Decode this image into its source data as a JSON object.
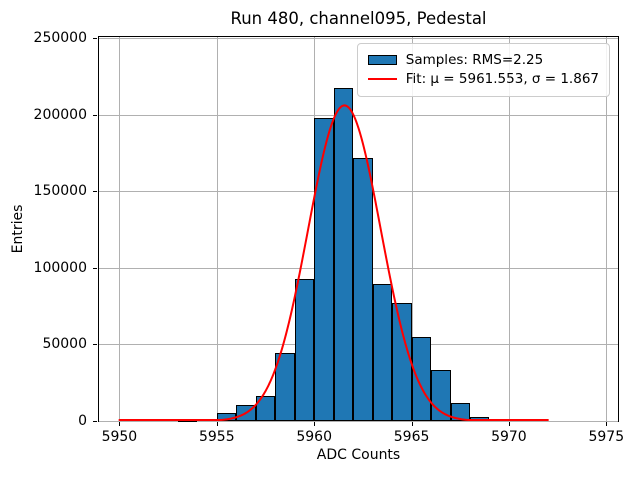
{
  "chart_data": {
    "type": "bar",
    "subtype": "histogram-with-gaussian-fit",
    "title": "Run 480, channel095, Pedestal",
    "xlabel": "ADC Counts",
    "ylabel": "Entries",
    "xlim": [
      5948.95,
      5975.6
    ],
    "ylim": [
      0,
      250650
    ],
    "xticks": [
      5950,
      5955,
      5960,
      5965,
      5970,
      5975
    ],
    "yticks": [
      0,
      50000,
      100000,
      150000,
      200000,
      250000
    ],
    "grid": true,
    "legend_position": "upper right",
    "stats": {
      "rms": 2.25,
      "mu": 5961.553,
      "sigma": 1.867
    },
    "series": [
      {
        "name": "Samples: RMS=2.25",
        "type": "histogram",
        "bin_width": 1,
        "bin_left_edges": [
          5953,
          5954,
          5955,
          5956,
          5957,
          5958,
          5959,
          5960,
          5961,
          5962,
          5963,
          5964,
          5965,
          5966,
          5967,
          5968
        ],
        "counts": [
          700,
          1500,
          5500,
          10700,
          16000,
          44500,
          93000,
          198000,
          217500,
          171500,
          89500,
          77000,
          55000,
          33200,
          12000,
          2600
        ],
        "fill_color": "#1f77b4",
        "edge_color": "#000000"
      },
      {
        "name": "Fit: μ = 5961.553, σ = 1.867",
        "type": "gaussian",
        "mu": 5961.553,
        "sigma": 1.867,
        "peak_amplitude": 206000,
        "x_start": 5950,
        "x_end": 5972,
        "color": "#ff0000",
        "line_width": 2
      }
    ],
    "colors": {
      "grid": "#b0b0b0",
      "background": "#ffffff",
      "spine": "#000000",
      "text": "#000000"
    }
  }
}
